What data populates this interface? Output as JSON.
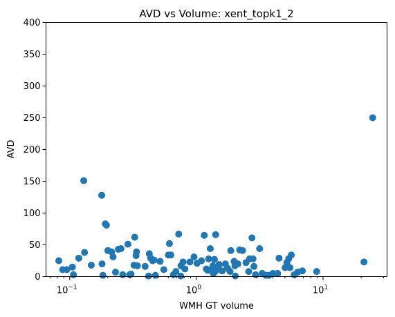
{
  "chart_data": {
    "type": "scatter",
    "title": "AVD vs Volume: xent_topk1_2",
    "xlabel": "WMH GT volume",
    "ylabel": "AVD",
    "xscale": "log",
    "xlim": [
      0.065,
      32
    ],
    "ylim": [
      0,
      400
    ],
    "grid": false,
    "legend": "none",
    "point_color": "#1f77b4",
    "x_ticks": [
      {
        "value": 0.1,
        "base": "10",
        "exp": "−1"
      },
      {
        "value": 1,
        "base": "10",
        "exp": "0"
      },
      {
        "value": 10,
        "base": "10",
        "exp": "1"
      }
    ],
    "y_ticks": [
      {
        "value": 0,
        "label": "0"
      },
      {
        "value": 50,
        "label": "50"
      },
      {
        "value": 100,
        "label": "100"
      },
      {
        "value": 150,
        "label": "150"
      },
      {
        "value": 200,
        "label": "200"
      },
      {
        "value": 250,
        "label": "250"
      },
      {
        "value": 300,
        "label": "300"
      },
      {
        "value": 350,
        "label": "350"
      },
      {
        "value": 400,
        "label": "400"
      }
    ],
    "points": [
      [
        0.082,
        25
      ],
      [
        0.088,
        11
      ],
      [
        0.095,
        11
      ],
      [
        0.105,
        15
      ],
      [
        0.107,
        3
      ],
      [
        0.118,
        29
      ],
      [
        0.129,
        151
      ],
      [
        0.131,
        38
      ],
      [
        0.148,
        18
      ],
      [
        0.179,
        128
      ],
      [
        0.18,
        20
      ],
      [
        0.183,
        2
      ],
      [
        0.191,
        83
      ],
      [
        0.195,
        81
      ],
      [
        0.2,
        41
      ],
      [
        0.214,
        39
      ],
      [
        0.22,
        31
      ],
      [
        0.23,
        7
      ],
      [
        0.242,
        43
      ],
      [
        0.254,
        44
      ],
      [
        0.262,
        3
      ],
      [
        0.288,
        51
      ],
      [
        0.298,
        3
      ],
      [
        0.305,
        4
      ],
      [
        0.322,
        18
      ],
      [
        0.326,
        62
      ],
      [
        0.334,
        33
      ],
      [
        0.337,
        39
      ],
      [
        0.342,
        17
      ],
      [
        0.394,
        16
      ],
      [
        0.42,
        1
      ],
      [
        0.425,
        36
      ],
      [
        0.436,
        29
      ],
      [
        0.451,
        25
      ],
      [
        0.463,
        26
      ],
      [
        0.475,
        2
      ],
      [
        0.517,
        24
      ],
      [
        0.553,
        11
      ],
      [
        0.601,
        34
      ],
      [
        0.613,
        52
      ],
      [
        0.629,
        34
      ],
      [
        0.659,
        3
      ],
      [
        0.689,
        8
      ],
      [
        0.725,
        67
      ],
      [
        0.752,
        1
      ],
      [
        0.756,
        17
      ],
      [
        0.784,
        23
      ],
      [
        0.812,
        12
      ],
      [
        0.889,
        23
      ],
      [
        0.958,
        31
      ],
      [
        1.013,
        21
      ],
      [
        1.097,
        25
      ],
      [
        1.154,
        65
      ],
      [
        1.199,
        12
      ],
      [
        1.232,
        10
      ],
      [
        1.25,
        28
      ],
      [
        1.287,
        44
      ],
      [
        1.305,
        10
      ],
      [
        1.352,
        17
      ],
      [
        1.364,
        5
      ],
      [
        1.389,
        27
      ],
      [
        1.406,
        8
      ],
      [
        1.42,
        66
      ],
      [
        1.495,
        12
      ],
      [
        1.514,
        19
      ],
      [
        1.596,
        9
      ],
      [
        1.694,
        20
      ],
      [
        1.763,
        13
      ],
      [
        1.844,
        8
      ],
      [
        1.869,
        41
      ],
      [
        1.986,
        24
      ],
      [
        2.015,
        17
      ],
      [
        2.03,
        1
      ],
      [
        2.124,
        20
      ],
      [
        2.196,
        42
      ],
      [
        2.316,
        41
      ],
      [
        2.464,
        22
      ],
      [
        2.586,
        8
      ],
      [
        2.633,
        28
      ],
      [
        2.747,
        61
      ],
      [
        2.8,
        28
      ],
      [
        2.848,
        16
      ],
      [
        2.932,
        3
      ],
      [
        3.156,
        44
      ],
      [
        3.306,
        5
      ],
      [
        3.533,
        2
      ],
      [
        3.733,
        2
      ],
      [
        4.025,
        5
      ],
      [
        4.383,
        5
      ],
      [
        4.496,
        29
      ],
      [
        5.019,
        14
      ],
      [
        5.179,
        22
      ],
      [
        5.353,
        28
      ],
      [
        5.481,
        14
      ],
      [
        5.617,
        34
      ],
      [
        5.924,
        3
      ],
      [
        6.302,
        7
      ],
      [
        6.862,
        9
      ],
      [
        8.902,
        8
      ],
      [
        21.05,
        23
      ],
      [
        24.66,
        250
      ]
    ]
  }
}
